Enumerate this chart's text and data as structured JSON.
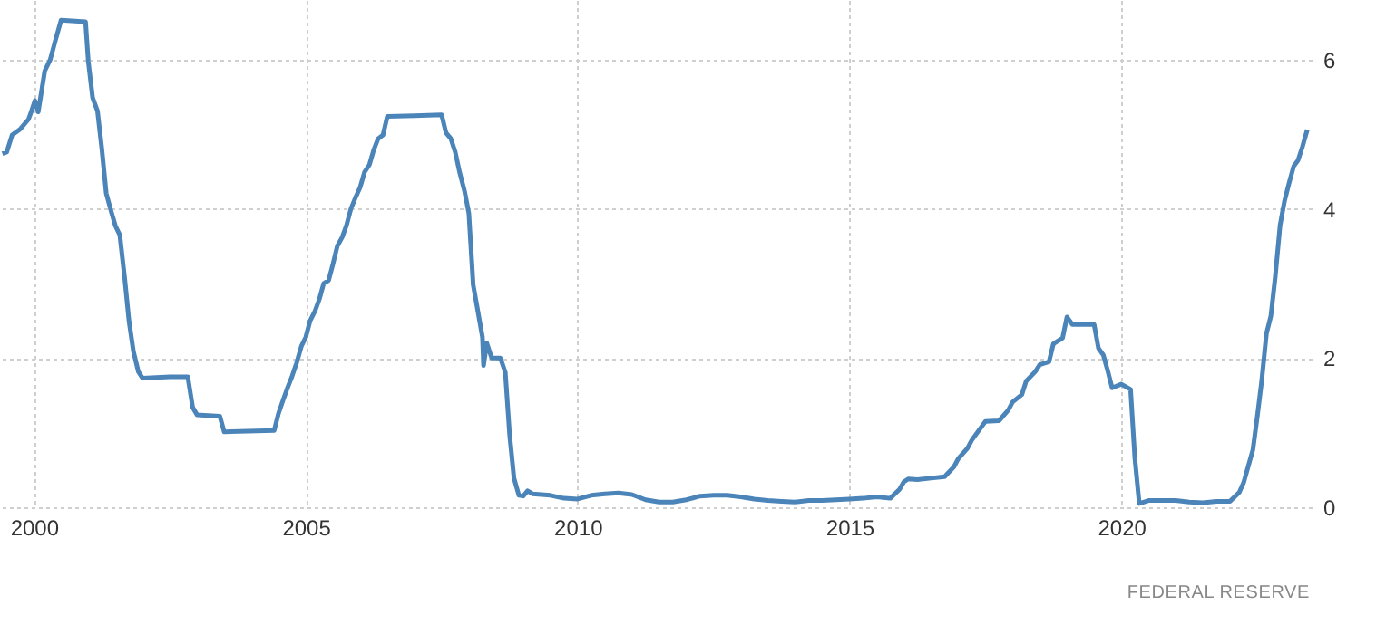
{
  "chart_data": {
    "type": "line",
    "x": [
      1999.42,
      1999.5,
      1999.6,
      1999.75,
      1999.9,
      1999.95,
      2000.02,
      2000.08,
      2000.2,
      2000.3,
      2000.4,
      2000.5,
      2000.95,
      2001.0,
      2001.08,
      2001.17,
      2001.25,
      2001.33,
      2001.42,
      2001.5,
      2001.58,
      2001.67,
      2001.75,
      2001.83,
      2001.92,
      2002.0,
      2002.5,
      2002.83,
      2002.92,
      2003.0,
      2003.42,
      2003.5,
      2004.42,
      2004.5,
      2004.58,
      2004.67,
      2004.75,
      2004.83,
      2004.92,
      2005.0,
      2005.08,
      2005.17,
      2005.25,
      2005.33,
      2005.42,
      2005.5,
      2005.58,
      2005.67,
      2005.75,
      2005.83,
      2005.92,
      2006.0,
      2006.08,
      2006.17,
      2006.25,
      2006.33,
      2006.42,
      2006.5,
      2007.0,
      2007.5,
      2007.58,
      2007.67,
      2007.75,
      2007.83,
      2007.92,
      2008.0,
      2008.08,
      2008.17,
      2008.25,
      2008.27,
      2008.33,
      2008.42,
      2008.58,
      2008.67,
      2008.75,
      2008.83,
      2008.92,
      2009.0,
      2009.08,
      2009.17,
      2009.5,
      2009.75,
      2010.0,
      2010.25,
      2010.5,
      2010.75,
      2011.0,
      2011.25,
      2011.5,
      2011.75,
      2012.0,
      2012.25,
      2012.5,
      2012.75,
      2013.0,
      2013.25,
      2013.5,
      2013.75,
      2014.0,
      2014.25,
      2014.5,
      2014.75,
      2015.0,
      2015.25,
      2015.5,
      2015.75,
      2015.92,
      2016.0,
      2016.08,
      2016.25,
      2016.5,
      2016.75,
      2016.92,
      2017.0,
      2017.17,
      2017.25,
      2017.5,
      2017.75,
      2017.92,
      2018.0,
      2018.17,
      2018.25,
      2018.42,
      2018.5,
      2018.67,
      2018.75,
      2018.92,
      2019.0,
      2019.1,
      2019.5,
      2019.58,
      2019.67,
      2019.75,
      2019.83,
      2020.0,
      2020.17,
      2020.25,
      2020.33,
      2020.5,
      2020.75,
      2021.0,
      2021.25,
      2021.5,
      2021.75,
      2022.0,
      2022.17,
      2022.25,
      2022.42,
      2022.5,
      2022.58,
      2022.67,
      2022.75,
      2022.83,
      2022.92,
      2023.0,
      2023.08,
      2023.17,
      2023.25,
      2023.33,
      2023.42
    ],
    "series": [
      {
        "color": "#4a84b9",
        "values": [
          4.74,
          4.76,
          4.99,
          5.07,
          5.2,
          5.3,
          5.45,
          5.3,
          5.85,
          6.0,
          6.27,
          6.53,
          6.51,
          5.98,
          5.49,
          5.31,
          4.8,
          4.21,
          3.97,
          3.77,
          3.65,
          3.07,
          2.49,
          2.09,
          1.82,
          1.73,
          1.75,
          1.75,
          1.34,
          1.24,
          1.22,
          1.01,
          1.03,
          1.26,
          1.43,
          1.61,
          1.76,
          1.93,
          2.16,
          2.28,
          2.5,
          2.63,
          2.79,
          3.0,
          3.04,
          3.26,
          3.5,
          3.62,
          3.78,
          4.0,
          4.16,
          4.29,
          4.49,
          4.59,
          4.79,
          4.94,
          4.99,
          5.24,
          5.25,
          5.26,
          5.02,
          4.94,
          4.76,
          4.49,
          4.24,
          3.94,
          2.98,
          2.61,
          2.28,
          1.9,
          2.2,
          2.0,
          2.0,
          1.81,
          0.97,
          0.39,
          0.16,
          0.15,
          0.22,
          0.18,
          0.16,
          0.12,
          0.11,
          0.16,
          0.18,
          0.19,
          0.17,
          0.1,
          0.07,
          0.07,
          0.1,
          0.15,
          0.16,
          0.16,
          0.14,
          0.11,
          0.09,
          0.08,
          0.07,
          0.09,
          0.09,
          0.1,
          0.11,
          0.12,
          0.14,
          0.12,
          0.24,
          0.34,
          0.38,
          0.37,
          0.39,
          0.41,
          0.54,
          0.65,
          0.79,
          0.9,
          1.15,
          1.16,
          1.3,
          1.41,
          1.51,
          1.69,
          1.82,
          1.91,
          1.95,
          2.19,
          2.27,
          2.55,
          2.45,
          2.45,
          2.13,
          2.04,
          1.83,
          1.6,
          1.65,
          1.58,
          0.65,
          0.05,
          0.09,
          0.09,
          0.09,
          0.07,
          0.06,
          0.08,
          0.08,
          0.2,
          0.33,
          0.77,
          1.21,
          1.68,
          2.33,
          2.56,
          3.08,
          3.78,
          4.1,
          4.33,
          4.57,
          4.65,
          4.83,
          5.06
        ]
      }
    ],
    "xlim": [
      1999.41,
      2023.5
    ],
    "xticks": [
      2000,
      2005,
      2010,
      2015,
      2020
    ],
    "ylim": [
      0,
      6.8
    ],
    "yticks": [
      0,
      2,
      4,
      6
    ],
    "grid": true,
    "line_style": "solid",
    "annotations": [
      "FEDERAL RESERVE"
    ]
  }
}
